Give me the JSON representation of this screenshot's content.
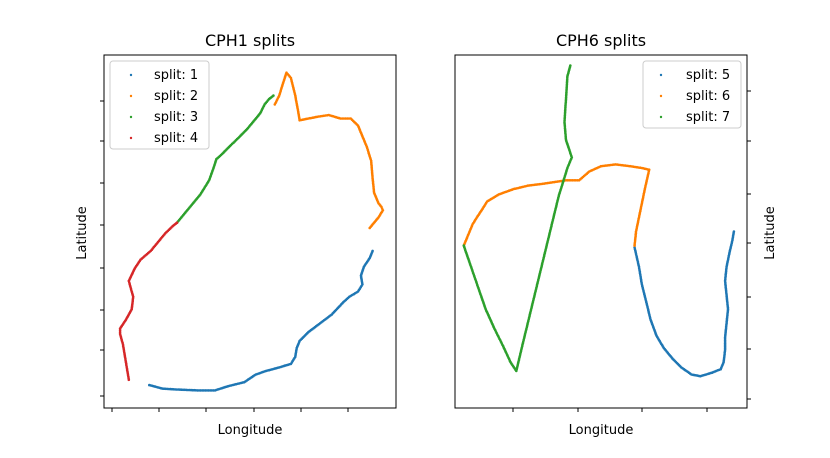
{
  "figure": {
    "background": "#ffffff"
  },
  "chart_data": [
    {
      "type": "scatter",
      "title": "CPH1 splits",
      "xlabel": "Longitude",
      "ylabel": "Latitude",
      "ylabel_side": "left",
      "tick_labels_shown": false,
      "legend": "top-left",
      "xlim": [
        0,
        100
      ],
      "ylim": [
        0,
        100
      ],
      "grid": false,
      "series": [
        {
          "name": "split: 1",
          "color": "#1f77b4",
          "points": [
            [
              15.5,
              6.5
            ],
            [
              20,
              5.5
            ],
            [
              26,
              5.2
            ],
            [
              32,
              5.0
            ],
            [
              38,
              5.0
            ],
            [
              43,
              6.3
            ],
            [
              48,
              7.3
            ],
            [
              52,
              9.5
            ],
            [
              55.5,
              10.5
            ],
            [
              60,
              11.5
            ],
            [
              64,
              12.5
            ],
            [
              65.5,
              14.5
            ],
            [
              66,
              17
            ],
            [
              67,
              19
            ],
            [
              70,
              21.5
            ],
            [
              74,
              24
            ],
            [
              78,
              26.5
            ],
            [
              82,
              30
            ],
            [
              84,
              31.5
            ],
            [
              87,
              33
            ],
            [
              88.5,
              35
            ],
            [
              88,
              37.5
            ],
            [
              89,
              40
            ],
            [
              91,
              42.5
            ],
            [
              92,
              44.5
            ]
          ]
        },
        {
          "name": "split: 2",
          "color": "#ff7f00",
          "points": [
            [
              58.5,
              86
            ],
            [
              60,
              88.5
            ],
            [
              61.5,
              92.5
            ],
            [
              62.5,
              95
            ],
            [
              64,
              93.5
            ],
            [
              65.5,
              88.5
            ],
            [
              66.5,
              84
            ],
            [
              67,
              81.5
            ],
            [
              70,
              82
            ],
            [
              73,
              82.5
            ],
            [
              77,
              83
            ],
            [
              81,
              82
            ],
            [
              84.5,
              82
            ],
            [
              87,
              80
            ],
            [
              88.5,
              77
            ],
            [
              90,
              74
            ],
            [
              91.5,
              70
            ],
            [
              92,
              65
            ],
            [
              92.5,
              61
            ],
            [
              94,
              58
            ],
            [
              95,
              57
            ],
            [
              95.5,
              56
            ],
            [
              94,
              54
            ],
            [
              92,
              52
            ],
            [
              91,
              51
            ]
          ]
        },
        {
          "name": "split: 3",
          "color": "#2ca02c",
          "points": [
            [
              25,
              52.5
            ],
            [
              27.5,
              55
            ],
            [
              30,
              57.5
            ],
            [
              33,
              60.5
            ],
            [
              36,
              64.5
            ],
            [
              37.5,
              68
            ],
            [
              38.5,
              70.5
            ],
            [
              40.5,
              72
            ],
            [
              43.5,
              74.5
            ],
            [
              46,
              76.5
            ],
            [
              49,
              79
            ],
            [
              51.5,
              81.5
            ],
            [
              53.5,
              83.5
            ],
            [
              55,
              86
            ],
            [
              56.5,
              87.5
            ],
            [
              58,
              88.5
            ]
          ]
        },
        {
          "name": "split: 4",
          "color": "#d62728",
          "points": [
            [
              8.5,
              8
            ],
            [
              7.5,
              13
            ],
            [
              6.5,
              18
            ],
            [
              5.5,
              21
            ],
            [
              5.5,
              22.5
            ],
            [
              7.5,
              25
            ],
            [
              9.5,
              28
            ],
            [
              10,
              31.5
            ],
            [
              8.5,
              36
            ],
            [
              10.5,
              39.5
            ],
            [
              12.5,
              42
            ],
            [
              16,
              44.5
            ],
            [
              18.5,
              47
            ],
            [
              21,
              49.5
            ],
            [
              23.5,
              51.5
            ],
            [
              25,
              52.5
            ]
          ]
        }
      ]
    },
    {
      "type": "scatter",
      "title": "CPH6 splits",
      "xlabel": "Longitude",
      "ylabel": "Latitude",
      "ylabel_side": "right",
      "tick_labels_shown": false,
      "legend": "top-right",
      "xlim": [
        0,
        100
      ],
      "ylim": [
        0,
        100
      ],
      "grid": false,
      "series": [
        {
          "name": "split: 5",
          "color": "#1f77b4",
          "points": [
            [
              61.5,
              45.5
            ],
            [
              63,
              40
            ],
            [
              64,
              35
            ],
            [
              65.5,
              30
            ],
            [
              67,
              25
            ],
            [
              69,
              20.5
            ],
            [
              71.5,
              17
            ],
            [
              74.5,
              14
            ],
            [
              77.5,
              11.5
            ],
            [
              81,
              9.5
            ],
            [
              84,
              9
            ],
            [
              88,
              10
            ],
            [
              91,
              11
            ],
            [
              92,
              13
            ],
            [
              92.5,
              16.5
            ],
            [
              92.5,
              20
            ],
            [
              93,
              24
            ],
            [
              93.5,
              28
            ],
            [
              93,
              32
            ],
            [
              92.5,
              36
            ],
            [
              93,
              40
            ],
            [
              94,
              44
            ],
            [
              95,
              47.5
            ],
            [
              95.5,
              50
            ]
          ]
        },
        {
          "name": "split: 6",
          "color": "#ff7f00",
          "points": [
            [
              61.5,
              46
            ],
            [
              62,
              50
            ],
            [
              63,
              54
            ],
            [
              64,
              58
            ],
            [
              65,
              62
            ],
            [
              66.5,
              67.5
            ],
            [
              64,
              68
            ],
            [
              60,
              68.5
            ],
            [
              55,
              69
            ],
            [
              50,
              68.5
            ],
            [
              46,
              67
            ],
            [
              42.5,
              64.5
            ],
            [
              38,
              64.5
            ],
            [
              34,
              64
            ],
            [
              30,
              63.5
            ],
            [
              25,
              63
            ],
            [
              20,
              62
            ],
            [
              15,
              60.5
            ],
            [
              11,
              58.5
            ],
            [
              9.5,
              56.5
            ],
            [
              7.5,
              54
            ],
            [
              6,
              52
            ],
            [
              4.5,
              49
            ],
            [
              3,
              46
            ]
          ]
        },
        {
          "name": "split: 7",
          "color": "#2ca02c",
          "points": [
            [
              3,
              46
            ],
            [
              5.5,
              40
            ],
            [
              8,
              34
            ],
            [
              10.5,
              28
            ],
            [
              13.5,
              22.5
            ],
            [
              16.5,
              17.5
            ],
            [
              19,
              13
            ],
            [
              21,
              10.5
            ],
            [
              23,
              17.5
            ],
            [
              25.5,
              26
            ],
            [
              28,
              34.5
            ],
            [
              30.5,
              43
            ],
            [
              33,
              51.5
            ],
            [
              35.5,
              60
            ],
            [
              38.5,
              68
            ],
            [
              40,
              71
            ],
            [
              38,
              76
            ],
            [
              37.5,
              81
            ],
            [
              38,
              87.5
            ],
            [
              38.5,
              94
            ],
            [
              39.5,
              97
            ]
          ]
        }
      ]
    }
  ]
}
